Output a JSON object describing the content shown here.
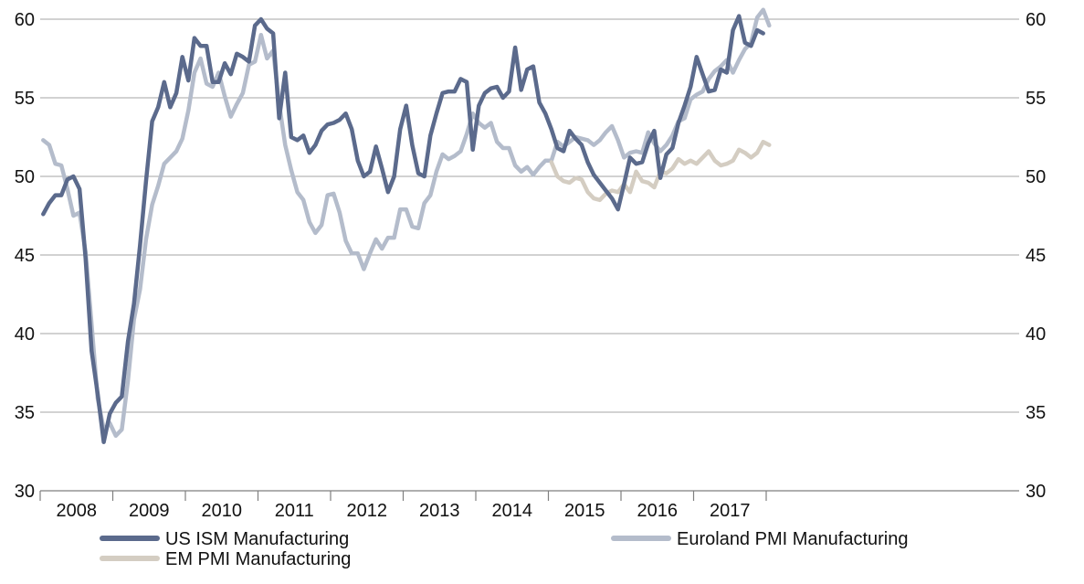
{
  "chart_data": {
    "type": "line",
    "title": "",
    "xlabel": "",
    "ylabel": "",
    "ylim": [
      30,
      60
    ],
    "y_ticks": [
      30,
      35,
      40,
      45,
      50,
      55,
      60
    ],
    "y_tick_labels_left": [
      "30",
      "35",
      "40",
      "45",
      "50",
      "55",
      "60"
    ],
    "y_tick_labels_right": [
      "30",
      "35",
      "40",
      "45",
      "50",
      "55",
      "60"
    ],
    "x_tick_labels": [
      "2008",
      "2009",
      "2010",
      "2011",
      "2012",
      "2013",
      "2014",
      "2015",
      "2016",
      "2017"
    ],
    "grid": "horizontal",
    "legend_position": "bottom",
    "series": [
      {
        "name": "US ISM Manufacturing",
        "color": "#5b6a8c",
        "points": [
          [
            "2008-01",
            47.6
          ],
          [
            "2008-02",
            48.3
          ],
          [
            "2008-03",
            48.8
          ],
          [
            "2008-04",
            48.8
          ],
          [
            "2008-05",
            49.8
          ],
          [
            "2008-06",
            50.0
          ],
          [
            "2008-07",
            49.2
          ],
          [
            "2008-08",
            44.8
          ],
          [
            "2008-09",
            38.9
          ],
          [
            "2008-10",
            36.2
          ],
          [
            "2008-11",
            33.1
          ],
          [
            "2008-12",
            34.9
          ],
          [
            "2009-01",
            35.6
          ],
          [
            "2009-02",
            36.0
          ],
          [
            "2009-03",
            39.5
          ],
          [
            "2009-04",
            41.9
          ],
          [
            "2009-05",
            45.6
          ],
          [
            "2009-06",
            49.7
          ],
          [
            "2009-07",
            53.5
          ],
          [
            "2009-08",
            54.4
          ],
          [
            "2009-09",
            56.0
          ],
          [
            "2009-10",
            54.4
          ],
          [
            "2009-11",
            55.3
          ],
          [
            "2009-12",
            57.6
          ],
          [
            "2010-01",
            56.1
          ],
          [
            "2010-02",
            58.8
          ],
          [
            "2010-03",
            58.3
          ],
          [
            "2010-04",
            58.3
          ],
          [
            "2010-05",
            56.0
          ],
          [
            "2010-06",
            56.0
          ],
          [
            "2010-07",
            57.2
          ],
          [
            "2010-08",
            56.5
          ],
          [
            "2010-09",
            57.8
          ],
          [
            "2010-10",
            57.6
          ],
          [
            "2010-11",
            57.3
          ],
          [
            "2010-12",
            59.6
          ],
          [
            "2011-01",
            60.0
          ],
          [
            "2011-02",
            59.4
          ],
          [
            "2011-03",
            59.1
          ],
          [
            "2011-04",
            53.7
          ],
          [
            "2011-05",
            56.6
          ],
          [
            "2011-06",
            52.5
          ],
          [
            "2011-07",
            52.3
          ],
          [
            "2011-08",
            52.6
          ],
          [
            "2011-09",
            51.5
          ],
          [
            "2011-10",
            52.0
          ],
          [
            "2011-11",
            52.9
          ],
          [
            "2011-12",
            53.3
          ],
          [
            "2012-01",
            53.4
          ],
          [
            "2012-02",
            53.6
          ],
          [
            "2012-03",
            54.0
          ],
          [
            "2012-04",
            53.0
          ],
          [
            "2012-05",
            51.0
          ],
          [
            "2012-06",
            50.0
          ],
          [
            "2012-07",
            50.3
          ],
          [
            "2012-08",
            51.9
          ],
          [
            "2012-09",
            50.5
          ],
          [
            "2012-10",
            49.0
          ],
          [
            "2012-11",
            50.0
          ],
          [
            "2012-12",
            53.0
          ],
          [
            "2013-01",
            54.5
          ],
          [
            "2013-02",
            52.0
          ],
          [
            "2013-03",
            50.2
          ],
          [
            "2013-04",
            50.0
          ],
          [
            "2013-05",
            52.6
          ],
          [
            "2013-06",
            54.0
          ],
          [
            "2013-07",
            55.3
          ],
          [
            "2013-08",
            55.4
          ],
          [
            "2013-09",
            55.4
          ],
          [
            "2013-10",
            56.2
          ],
          [
            "2013-11",
            56.0
          ],
          [
            "2013-12",
            51.7
          ],
          [
            "2014-01",
            54.5
          ],
          [
            "2014-02",
            55.3
          ],
          [
            "2014-03",
            55.6
          ],
          [
            "2014-04",
            55.7
          ],
          [
            "2014-05",
            55.0
          ],
          [
            "2014-06",
            55.4
          ],
          [
            "2014-07",
            58.2
          ],
          [
            "2014-08",
            55.5
          ],
          [
            "2014-09",
            56.8
          ],
          [
            "2014-10",
            57.0
          ],
          [
            "2014-11",
            54.7
          ],
          [
            "2014-12",
            54.0
          ],
          [
            "2015-01",
            53.0
          ],
          [
            "2015-02",
            51.8
          ],
          [
            "2015-03",
            51.6
          ],
          [
            "2015-04",
            52.9
          ],
          [
            "2015-05",
            52.4
          ],
          [
            "2015-06",
            52.0
          ],
          [
            "2015-07",
            50.9
          ],
          [
            "2015-08",
            50.1
          ],
          [
            "2015-09",
            49.6
          ],
          [
            "2015-10",
            49.1
          ],
          [
            "2015-11",
            48.6
          ],
          [
            "2015-12",
            47.9
          ],
          [
            "2016-01",
            49.5
          ],
          [
            "2016-02",
            51.2
          ],
          [
            "2016-03",
            50.8
          ],
          [
            "2016-04",
            50.9
          ],
          [
            "2016-05",
            52.1
          ],
          [
            "2016-06",
            52.9
          ],
          [
            "2016-07",
            49.9
          ],
          [
            "2016-08",
            51.4
          ],
          [
            "2016-09",
            51.8
          ],
          [
            "2016-10",
            53.4
          ],
          [
            "2016-11",
            54.5
          ],
          [
            "2016-12",
            55.7
          ],
          [
            "2017-01",
            57.6
          ],
          [
            "2017-02",
            56.5
          ],
          [
            "2017-03",
            55.4
          ],
          [
            "2017-04",
            55.5
          ],
          [
            "2017-05",
            56.8
          ],
          [
            "2017-06",
            56.6
          ],
          [
            "2017-07",
            59.3
          ],
          [
            "2017-08",
            60.2
          ],
          [
            "2017-09",
            58.5
          ],
          [
            "2017-10",
            58.3
          ],
          [
            "2017-11",
            59.3
          ],
          [
            "2017-12",
            59.1
          ]
        ]
      },
      {
        "name": "Euroland PMI Manufacturing",
        "color": "#b4bccb",
        "points": [
          [
            "2008-01",
            52.3
          ],
          [
            "2008-02",
            52.0
          ],
          [
            "2008-03",
            50.8
          ],
          [
            "2008-04",
            50.7
          ],
          [
            "2008-05",
            49.2
          ],
          [
            "2008-06",
            47.5
          ],
          [
            "2008-07",
            47.7
          ],
          [
            "2008-08",
            45.2
          ],
          [
            "2008-09",
            40.6
          ],
          [
            "2008-10",
            35.9
          ],
          [
            "2008-11",
            33.9
          ],
          [
            "2008-12",
            34.3
          ],
          [
            "2009-01",
            33.5
          ],
          [
            "2009-02",
            33.9
          ],
          [
            "2009-03",
            37.0
          ],
          [
            "2009-04",
            40.9
          ],
          [
            "2009-05",
            42.8
          ],
          [
            "2009-06",
            46.0
          ],
          [
            "2009-07",
            48.2
          ],
          [
            "2009-08",
            49.4
          ],
          [
            "2009-09",
            50.8
          ],
          [
            "2009-10",
            51.2
          ],
          [
            "2009-11",
            51.6
          ],
          [
            "2009-12",
            52.4
          ],
          [
            "2010-01",
            54.2
          ],
          [
            "2010-02",
            56.6
          ],
          [
            "2010-03",
            57.5
          ],
          [
            "2010-04",
            55.9
          ],
          [
            "2010-05",
            55.7
          ],
          [
            "2010-06",
            56.6
          ],
          [
            "2010-07",
            55.1
          ],
          [
            "2010-08",
            53.8
          ],
          [
            "2010-09",
            54.6
          ],
          [
            "2010-10",
            55.3
          ],
          [
            "2010-11",
            57.1
          ],
          [
            "2010-12",
            57.3
          ],
          [
            "2011-01",
            59.0
          ],
          [
            "2011-02",
            57.5
          ],
          [
            "2011-03",
            58.0
          ],
          [
            "2011-04",
            54.6
          ],
          [
            "2011-05",
            52.0
          ],
          [
            "2011-06",
            50.4
          ],
          [
            "2011-07",
            49.0
          ],
          [
            "2011-08",
            48.5
          ],
          [
            "2011-09",
            47.1
          ],
          [
            "2011-10",
            46.4
          ],
          [
            "2011-11",
            46.9
          ],
          [
            "2011-12",
            48.8
          ],
          [
            "2012-01",
            48.9
          ],
          [
            "2012-02",
            47.7
          ],
          [
            "2012-03",
            45.9
          ],
          [
            "2012-04",
            45.1
          ],
          [
            "2012-05",
            45.1
          ],
          [
            "2012-06",
            44.1
          ],
          [
            "2012-07",
            45.1
          ],
          [
            "2012-08",
            46.0
          ],
          [
            "2012-09",
            45.4
          ],
          [
            "2012-10",
            46.1
          ],
          [
            "2012-11",
            46.1
          ],
          [
            "2012-12",
            47.9
          ],
          [
            "2013-01",
            47.9
          ],
          [
            "2013-02",
            46.8
          ],
          [
            "2013-03",
            46.7
          ],
          [
            "2013-04",
            48.3
          ],
          [
            "2013-05",
            48.8
          ],
          [
            "2013-06",
            50.3
          ],
          [
            "2013-07",
            51.4
          ],
          [
            "2013-08",
            51.1
          ],
          [
            "2013-09",
            51.3
          ],
          [
            "2013-10",
            51.6
          ],
          [
            "2013-11",
            52.7
          ],
          [
            "2013-12",
            54.0
          ],
          [
            "2014-01",
            53.4
          ],
          [
            "2014-02",
            53.1
          ],
          [
            "2014-03",
            53.4
          ],
          [
            "2014-04",
            52.2
          ],
          [
            "2014-05",
            51.8
          ],
          [
            "2014-06",
            51.8
          ],
          [
            "2014-07",
            50.7
          ],
          [
            "2014-08",
            50.3
          ],
          [
            "2014-09",
            50.6
          ],
          [
            "2014-10",
            50.1
          ],
          [
            "2014-11",
            50.6
          ],
          [
            "2014-12",
            51.0
          ],
          [
            "2015-01",
            51.0
          ],
          [
            "2015-02",
            52.2
          ],
          [
            "2015-03",
            51.9
          ],
          [
            "2015-04",
            52.2
          ],
          [
            "2015-05",
            52.5
          ],
          [
            "2015-06",
            52.4
          ],
          [
            "2015-07",
            52.3
          ],
          [
            "2015-08",
            52.0
          ],
          [
            "2015-09",
            52.3
          ],
          [
            "2015-10",
            52.8
          ],
          [
            "2015-11",
            53.2
          ],
          [
            "2015-12",
            52.3
          ],
          [
            "2016-01",
            51.2
          ],
          [
            "2016-02",
            51.5
          ],
          [
            "2016-03",
            51.6
          ],
          [
            "2016-04",
            51.5
          ],
          [
            "2016-05",
            52.8
          ],
          [
            "2016-06",
            52.1
          ],
          [
            "2016-07",
            51.6
          ],
          [
            "2016-08",
            52.0
          ],
          [
            "2016-09",
            52.6
          ],
          [
            "2016-10",
            53.5
          ],
          [
            "2016-11",
            53.7
          ],
          [
            "2016-12",
            54.9
          ],
          [
            "2017-01",
            55.2
          ],
          [
            "2017-02",
            55.4
          ],
          [
            "2017-03",
            56.2
          ],
          [
            "2017-04",
            56.7
          ],
          [
            "2017-05",
            57.0
          ],
          [
            "2017-06",
            57.4
          ],
          [
            "2017-07",
            56.6
          ],
          [
            "2017-08",
            57.4
          ],
          [
            "2017-09",
            58.1
          ],
          [
            "2017-10",
            58.5
          ],
          [
            "2017-11",
            60.1
          ],
          [
            "2017-12",
            60.6
          ],
          [
            "2018-01",
            59.6
          ]
        ]
      },
      {
        "name": "EM PMI Manufacturing",
        "color": "#d4cdc2",
        "points": [
          [
            "2015-01",
            50.9
          ],
          [
            "2015-02",
            50.0
          ],
          [
            "2015-03",
            49.7
          ],
          [
            "2015-04",
            49.6
          ],
          [
            "2015-05",
            49.9
          ],
          [
            "2015-06",
            49.8
          ],
          [
            "2015-07",
            49.0
          ],
          [
            "2015-08",
            48.6
          ],
          [
            "2015-09",
            48.5
          ],
          [
            "2015-10",
            48.9
          ],
          [
            "2015-11",
            49.1
          ],
          [
            "2015-12",
            49.0
          ],
          [
            "2016-01",
            49.5
          ],
          [
            "2016-02",
            49.0
          ],
          [
            "2016-03",
            50.3
          ],
          [
            "2016-04",
            49.7
          ],
          [
            "2016-05",
            49.6
          ],
          [
            "2016-06",
            49.3
          ],
          [
            "2016-07",
            50.3
          ],
          [
            "2016-08",
            50.2
          ],
          [
            "2016-09",
            50.5
          ],
          [
            "2016-10",
            51.1
          ],
          [
            "2016-11",
            50.8
          ],
          [
            "2016-12",
            51.0
          ],
          [
            "2017-01",
            50.8
          ],
          [
            "2017-02",
            51.2
          ],
          [
            "2017-03",
            51.6
          ],
          [
            "2017-04",
            51.0
          ],
          [
            "2017-05",
            50.7
          ],
          [
            "2017-06",
            50.8
          ],
          [
            "2017-07",
            51.0
          ],
          [
            "2017-08",
            51.7
          ],
          [
            "2017-09",
            51.5
          ],
          [
            "2017-10",
            51.2
          ],
          [
            "2017-11",
            51.5
          ],
          [
            "2017-12",
            52.2
          ],
          [
            "2018-01",
            52.0
          ]
        ]
      }
    ]
  },
  "legend": {
    "items": [
      {
        "label": "US ISM Manufacturing",
        "color": "#5b6a8c"
      },
      {
        "label": "Euroland PMI Manufacturing",
        "color": "#b4bccb"
      },
      {
        "label": "EM PMI Manufacturing",
        "color": "#d4cdc2"
      }
    ]
  },
  "style": {
    "gridline_color": "#a6a6a6",
    "axis_color": "#7f7f7f",
    "text_color": "#111111"
  }
}
